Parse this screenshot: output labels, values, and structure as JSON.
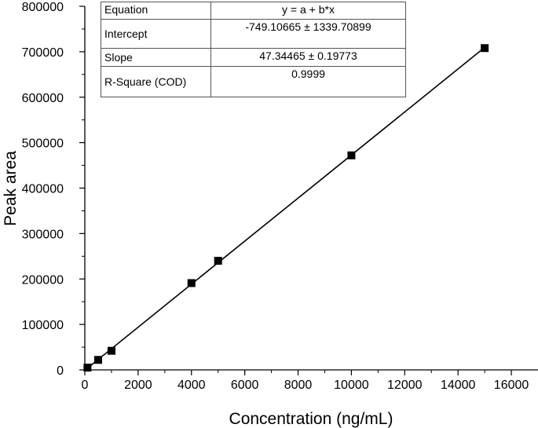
{
  "chart_data": {
    "type": "scatter",
    "xlabel": "Concentration (ng/mL)",
    "ylabel": "Peak area",
    "xlim": [
      0,
      17000
    ],
    "ylim": [
      0,
      800000
    ],
    "x_ticks": [
      0,
      2000,
      4000,
      6000,
      8000,
      10000,
      12000,
      14000,
      16000
    ],
    "y_ticks": [
      0,
      100000,
      200000,
      300000,
      400000,
      500000,
      600000,
      700000,
      800000
    ],
    "x_tick_labels": [
      "0",
      "2000",
      "4000",
      "6000",
      "8000",
      "10000",
      "12000",
      "14000",
      "16000"
    ],
    "y_tick_labels": [
      "0",
      "100000",
      "200000",
      "300000",
      "400000",
      "500000",
      "600000",
      "700000",
      "800000"
    ],
    "series": [
      {
        "marker": "square",
        "color": "#000000",
        "points": [
          {
            "x": 100,
            "y": 5000
          },
          {
            "x": 500,
            "y": 22000
          },
          {
            "x": 1000,
            "y": 42000
          },
          {
            "x": 4000,
            "y": 191000
          },
          {
            "x": 5000,
            "y": 240000
          },
          {
            "x": 10000,
            "y": 472000
          },
          {
            "x": 15000,
            "y": 708000
          }
        ]
      }
    ],
    "fit_line": {
      "x_range": [
        100,
        15000
      ],
      "intercept": -749.10665,
      "slope": 47.34465,
      "color": "#000000"
    },
    "grid": false,
    "fit_table": {
      "rows": [
        {
          "key": "Equation",
          "value": "y = a + b*x"
        },
        {
          "key": "Intercept",
          "value": "-749.10665 ± 1339.70899"
        },
        {
          "key": "Slope",
          "value": "47.34465 ± 0.19773"
        },
        {
          "key": "R-Square (COD)",
          "value": "0.9999"
        }
      ]
    }
  }
}
